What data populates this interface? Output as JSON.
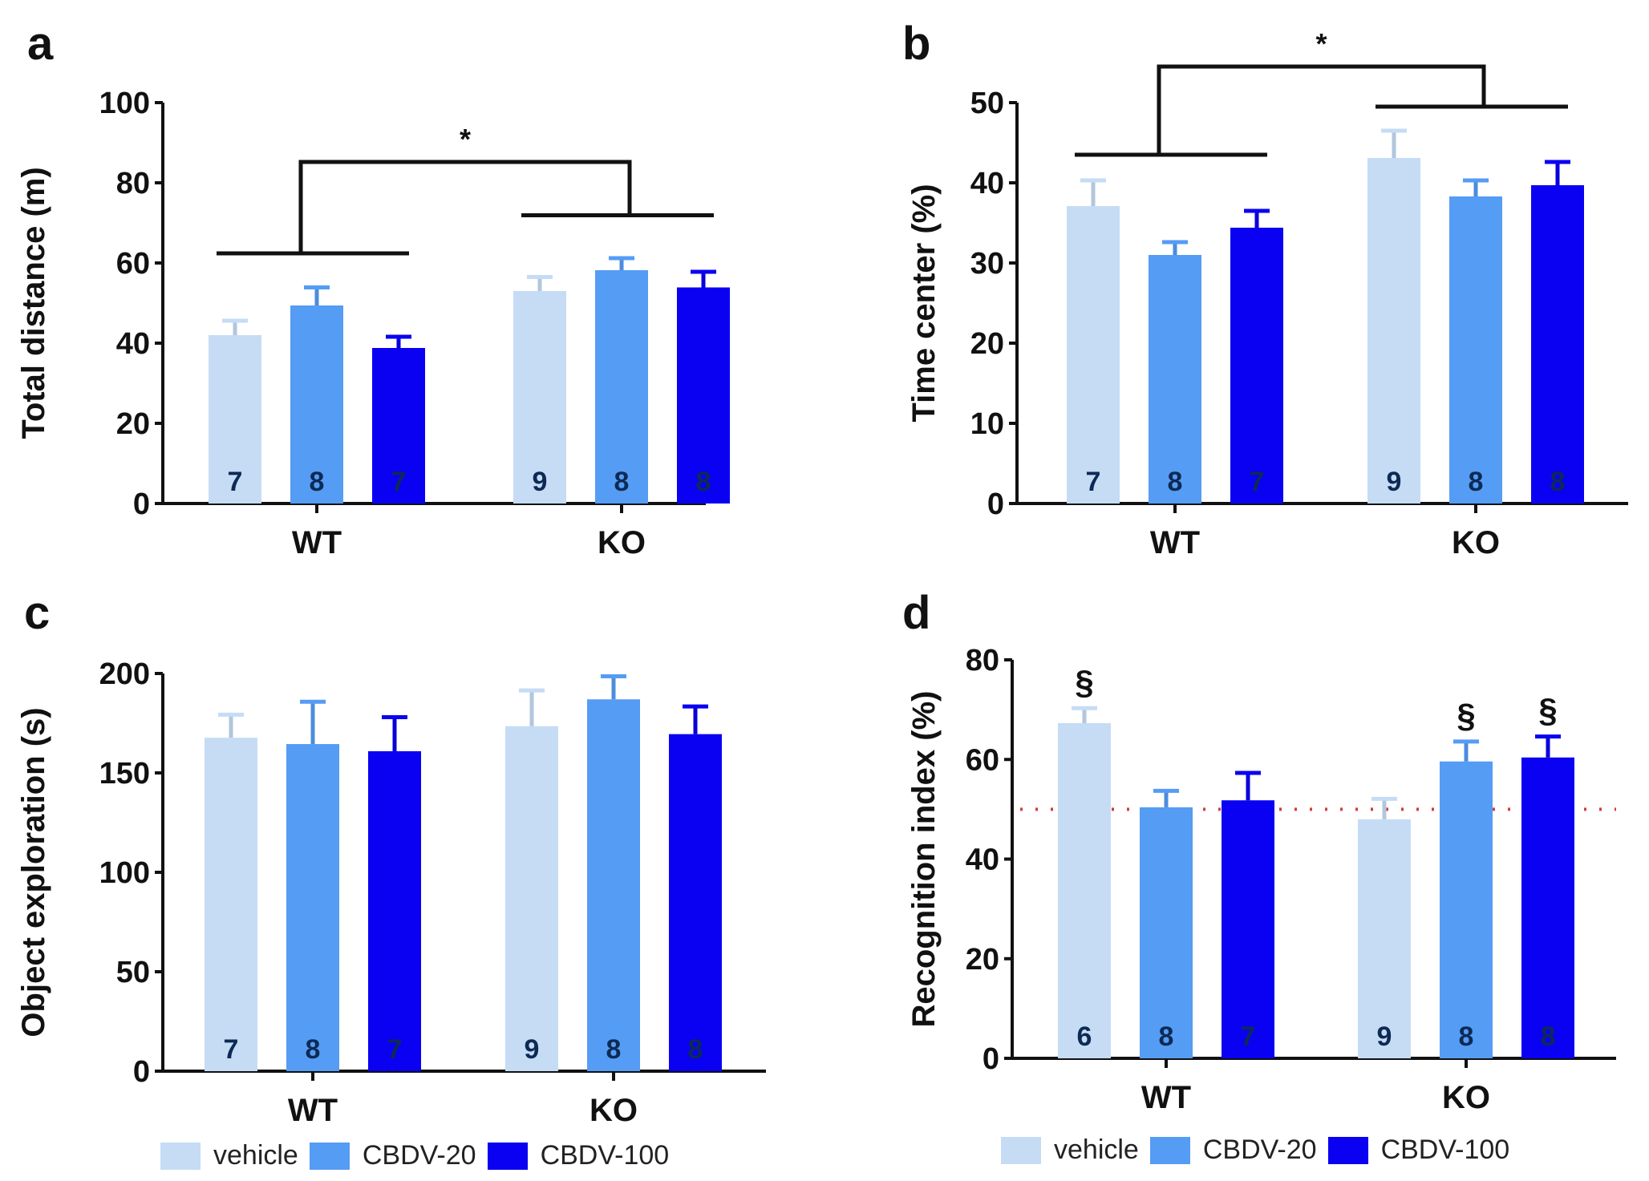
{
  "colors": {
    "vehicle": "#c6dcf5",
    "CBDV-20": "#559cf4",
    "CBDV-100": "#0a00f2",
    "axis": "#111111",
    "dotted": "#d04040"
  },
  "legend": [
    "vehicle",
    "CBDV-20",
    "CBDV-100"
  ],
  "chart_data": [
    {
      "type": "bar",
      "panel_label": "a",
      "ylabel": "Total distance (m)",
      "ylim": [
        0,
        100
      ],
      "yticks": [
        0,
        20,
        40,
        60,
        80,
        100
      ],
      "categories": [
        "WT",
        "KO"
      ],
      "series": [
        {
          "name": "vehicle",
          "values": [
            42,
            53
          ],
          "errors": [
            3.6,
            3.5
          ],
          "n": [
            "7",
            "9"
          ]
        },
        {
          "name": "CBDV-20",
          "values": [
            49.4,
            58.2
          ],
          "errors": [
            4.5,
            3.0
          ],
          "n": [
            "8",
            "8"
          ]
        },
        {
          "name": "CBDV-100",
          "values": [
            38.8,
            53.9
          ],
          "errors": [
            2.8,
            3.9
          ],
          "n": [
            "7",
            "8"
          ]
        }
      ],
      "annotations": {
        "bracket": {
          "label": "*",
          "left_level": 62.4,
          "right_level": 71.9,
          "top_level": 85.2
        }
      }
    },
    {
      "type": "bar",
      "panel_label": "b",
      "ylabel": "Time center (%)",
      "ylim": [
        0,
        50
      ],
      "yticks": [
        0,
        10,
        20,
        30,
        40,
        50
      ],
      "categories": [
        "WT",
        "KO"
      ],
      "series": [
        {
          "name": "vehicle",
          "values": [
            37.1,
            43.1
          ],
          "errors": [
            3.2,
            3.4
          ],
          "n": [
            "7",
            "9"
          ]
        },
        {
          "name": "CBDV-20",
          "values": [
            31.0,
            38.3
          ],
          "errors": [
            1.6,
            2.0
          ],
          "n": [
            "8",
            "8"
          ]
        },
        {
          "name": "CBDV-100",
          "values": [
            34.4,
            39.7
          ],
          "errors": [
            2.1,
            2.9
          ],
          "n": [
            "7",
            "8"
          ]
        }
      ],
      "annotations": {
        "bracket": {
          "label": "*",
          "left_level": 43.5,
          "right_level": 49.5,
          "top_level": 54.5
        }
      }
    },
    {
      "type": "bar",
      "panel_label": "c",
      "ylabel": "Object exploration (s)",
      "ylim": [
        0,
        200
      ],
      "yticks": [
        0,
        50,
        100,
        150,
        200
      ],
      "categories": [
        "WT",
        "KO"
      ],
      "series": [
        {
          "name": "vehicle",
          "values": [
            167.7,
            173.5
          ],
          "errors": [
            11.6,
            18.0
          ],
          "n": [
            "7",
            "9"
          ]
        },
        {
          "name": "CBDV-20",
          "values": [
            164.5,
            187.0
          ],
          "errors": [
            21.3,
            11.6
          ],
          "n": [
            "8",
            "8"
          ]
        },
        {
          "name": "CBDV-100",
          "values": [
            160.9,
            169.5
          ],
          "errors": [
            17.1,
            13.9
          ],
          "n": [
            "7",
            "8"
          ]
        }
      ]
    },
    {
      "type": "bar",
      "panel_label": "d",
      "ylabel": "Recognition index (%)",
      "ylim": [
        0,
        80
      ],
      "yticks": [
        0,
        20,
        40,
        60,
        80
      ],
      "categories": [
        "WT",
        "KO"
      ],
      "series": [
        {
          "name": "vehicle",
          "values": [
            67.3,
            48.0
          ],
          "errors": [
            3.0,
            4.1
          ],
          "n": [
            "6",
            "9"
          ],
          "marks": [
            "§",
            ""
          ]
        },
        {
          "name": "CBDV-20",
          "values": [
            50.4,
            59.6
          ],
          "errors": [
            3.3,
            4.0
          ],
          "n": [
            "8",
            "8"
          ],
          "marks": [
            "",
            "§"
          ]
        },
        {
          "name": "CBDV-100",
          "values": [
            51.8,
            60.4
          ],
          "errors": [
            5.5,
            4.2
          ],
          "n": [
            "7",
            "8"
          ],
          "marks": [
            "",
            "§"
          ]
        }
      ],
      "annotations": {
        "reference_line": 50
      }
    }
  ]
}
